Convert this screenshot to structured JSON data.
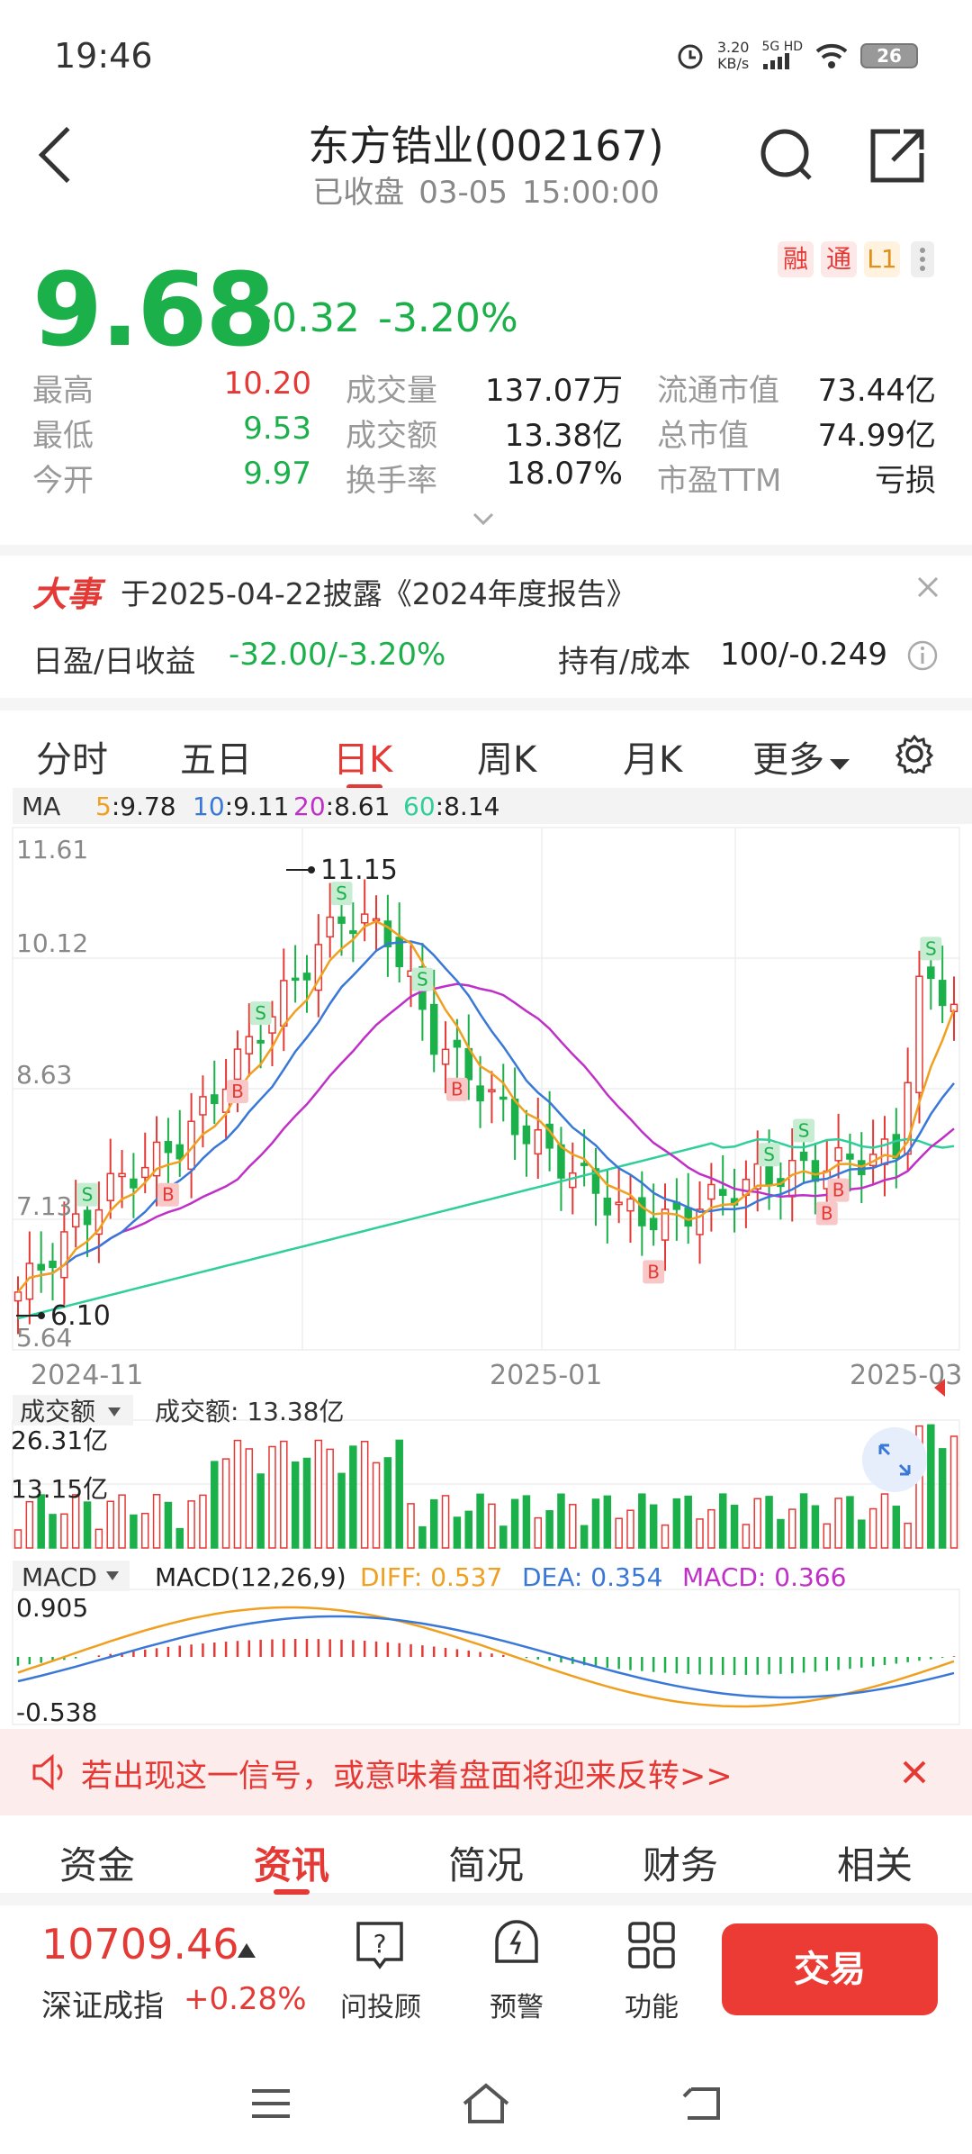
{
  "status": {
    "time": "19:46",
    "net_speed": "3.20",
    "net_unit": "KB/s",
    "net_type": "5G HD",
    "battery": "26"
  },
  "header": {
    "title": "东方锆业(002167)",
    "status": "已收盘",
    "date": "03-05",
    "time": "15:00:00"
  },
  "quote": {
    "price": "9.68",
    "change": "-0.32",
    "change_pct": "-3.20%",
    "tags": [
      "融",
      "通",
      "L1"
    ],
    "stats": [
      {
        "label": "最高",
        "value": "10.20",
        "tone": "red"
      },
      {
        "label": "最低",
        "value": "9.53",
        "tone": "green"
      },
      {
        "label": "今开",
        "value": "9.97",
        "tone": "green"
      },
      {
        "label": "成交量",
        "value": "137.07万"
      },
      {
        "label": "成交额",
        "value": "13.38亿"
      },
      {
        "label": "换手率",
        "value": "18.07%"
      },
      {
        "label": "流通市值",
        "value": "73.44亿"
      },
      {
        "label": "总市值",
        "value": "74.99亿"
      },
      {
        "label": "市盈TTM",
        "value": "亏损"
      }
    ]
  },
  "event": {
    "badge": "大事",
    "text": "于2025-04-22披露《2024年度报告》"
  },
  "holding": {
    "pl_label": "日盈/日收益",
    "pl_value": "-32.00/-3.20%",
    "cost_label": "持有/成本",
    "cost_value": "100/-0.249"
  },
  "chart_tabs": [
    "分时",
    "五日",
    "日K",
    "周K",
    "月K",
    "更多"
  ],
  "ma": {
    "label": "MA",
    "items": [
      {
        "k": "5",
        "v": "9.78",
        "color": "#f0a020"
      },
      {
        "k": "10",
        "v": "9.11",
        "color": "#3a78d8"
      },
      {
        "k": "20",
        "v": "8.61",
        "color": "#c030c8"
      },
      {
        "k": "60",
        "v": "8.14",
        "color": "#2ecf9a"
      }
    ]
  },
  "kline": {
    "y_labels": [
      "11.61",
      "10.12",
      "8.63",
      "7.13",
      "5.64"
    ],
    "x_labels": [
      "2024-11",
      "2025-01",
      "2025-03"
    ],
    "high_mark": "11.15",
    "low_mark": "6.10"
  },
  "volume": {
    "label": "成交额",
    "summary": "成交额: 13.38亿",
    "y_labels": [
      "26.31亿",
      "13.15亿"
    ]
  },
  "macd": {
    "label": "MACD",
    "params": "MACD(12,26,9)",
    "diff": "DIFF: 0.537",
    "dea": "DEA: 0.354",
    "macd": "MACD: 0.366",
    "y_top": "0.905",
    "y_bottom": "-0.538"
  },
  "banner": {
    "text": "若出现这一信号，或意味着盘面将迎来反转>>"
  },
  "sub_tabs": [
    "资金",
    "资讯",
    "简况",
    "财务",
    "相关"
  ],
  "index": {
    "value": "10709.46",
    "name": "深证成指",
    "change": "+0.28%"
  },
  "bottom_actions": [
    "问投顾",
    "预警",
    "功能"
  ],
  "trade_button": "交易"
}
